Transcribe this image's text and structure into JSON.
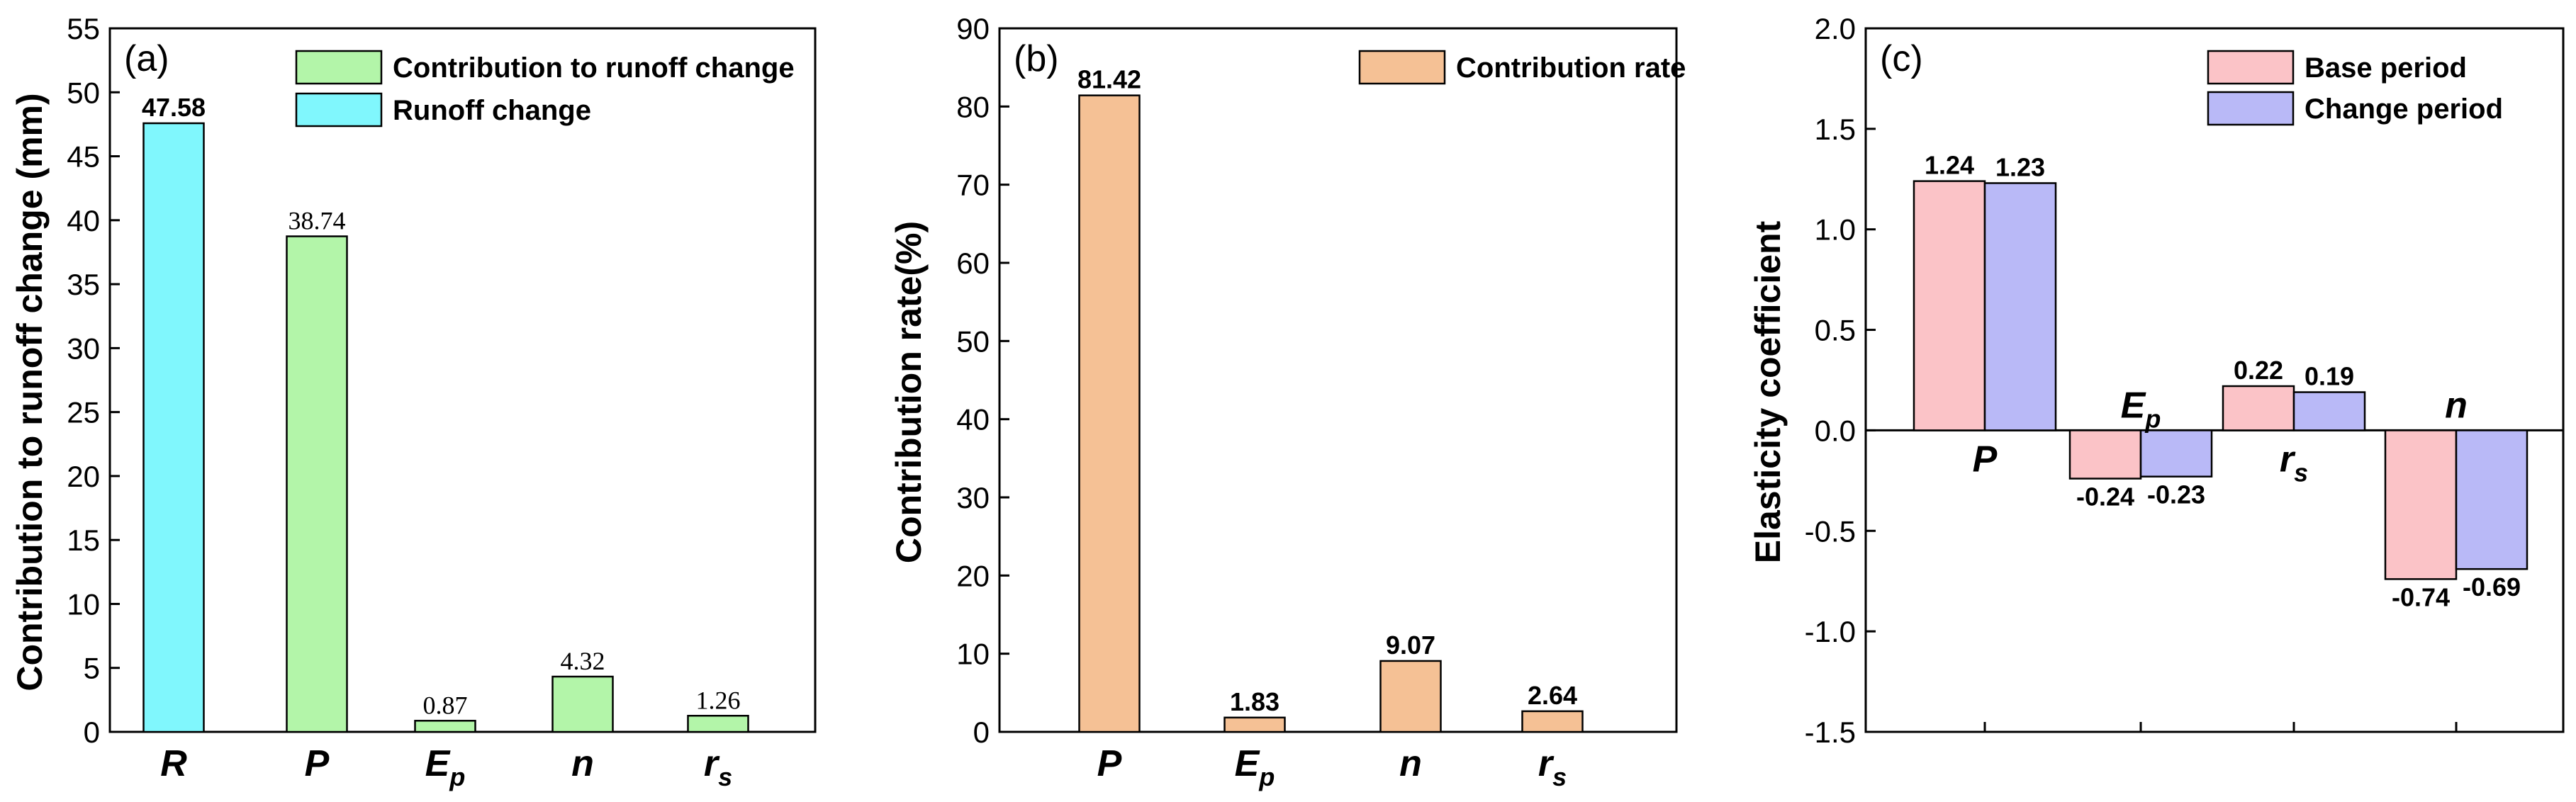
{
  "chart_data": [
    {
      "type": "bar",
      "panel_label": "(a)",
      "xlabel": "",
      "ylabel": "Contribution to runoff change (mm)",
      "ylim": [
        0,
        55
      ],
      "yticks": [
        0,
        5,
        10,
        15,
        20,
        25,
        30,
        35,
        40,
        45,
        50,
        55
      ],
      "legend_position": "top-right",
      "categories": [
        {
          "base": "R",
          "sub": ""
        },
        {
          "base": "P",
          "sub": ""
        },
        {
          "base": "E",
          "sub": "p"
        },
        {
          "base": "n",
          "sub": ""
        },
        {
          "base": "r",
          "sub": "s"
        }
      ],
      "series": [
        {
          "name": "Contribution to runoff change",
          "color": "#b3f5a9",
          "values": [
            null,
            38.74,
            0.87,
            4.32,
            1.26
          ],
          "labels": [
            "",
            "38.74",
            "0.87",
            "4.32",
            "1.26"
          ],
          "label_style": "serif"
        },
        {
          "name": "Runoff change",
          "color": "#80f7fd",
          "values": [
            47.58,
            null,
            null,
            null,
            null
          ],
          "labels": [
            "47.58",
            "",
            "",
            "",
            ""
          ],
          "label_style": "bold"
        }
      ]
    },
    {
      "type": "bar",
      "panel_label": "(b)",
      "xlabel": "",
      "ylabel": "Contribution rate(%)",
      "ylim": [
        0,
        90
      ],
      "yticks": [
        0,
        10,
        20,
        30,
        40,
        50,
        60,
        70,
        80,
        90
      ],
      "legend_position": "top-right",
      "categories": [
        {
          "base": "P",
          "sub": ""
        },
        {
          "base": "E",
          "sub": "p"
        },
        {
          "base": "n",
          "sub": ""
        },
        {
          "base": "r",
          "sub": "s"
        }
      ],
      "series": [
        {
          "name": "Contribution rate",
          "color": "#f5c195",
          "values": [
            81.42,
            1.83,
            9.07,
            2.64
          ],
          "labels": [
            "81.42",
            "1.83",
            "9.07",
            "2.64"
          ],
          "label_style": "bold"
        }
      ]
    },
    {
      "type": "bar",
      "panel_label": "(c)",
      "xlabel": "",
      "ylabel": "Elasticity coefficient",
      "ylim": [
        -1.5,
        2.0
      ],
      "yticks": [
        -1.5,
        -1.0,
        -0.5,
        0.0,
        0.5,
        1.0,
        1.5,
        2.0
      ],
      "ytick_labels": [
        "-1.5",
        "-1.0",
        "-0.5",
        "0.0",
        "0.5",
        "1.0",
        "1.5",
        "2.0"
      ],
      "legend_position": "top-right",
      "categories": [
        {
          "base": "P",
          "sub": ""
        },
        {
          "base": "E",
          "sub": "p"
        },
        {
          "base": "r",
          "sub": "s"
        },
        {
          "base": "n",
          "sub": ""
        }
      ],
      "series": [
        {
          "name": "Base period",
          "color": "#fbc3c7",
          "values": [
            1.24,
            -0.24,
            0.22,
            -0.74
          ],
          "labels": [
            "1.24",
            "-0.24",
            "0.22",
            "-0.74"
          ],
          "label_style": "bold"
        },
        {
          "name": "Change period",
          "color": "#b9b9f7",
          "values": [
            1.23,
            -0.23,
            0.19,
            -0.69
          ],
          "labels": [
            "1.23",
            "-0.23",
            "0.19",
            "-0.69"
          ],
          "label_style": "bold"
        }
      ]
    }
  ]
}
